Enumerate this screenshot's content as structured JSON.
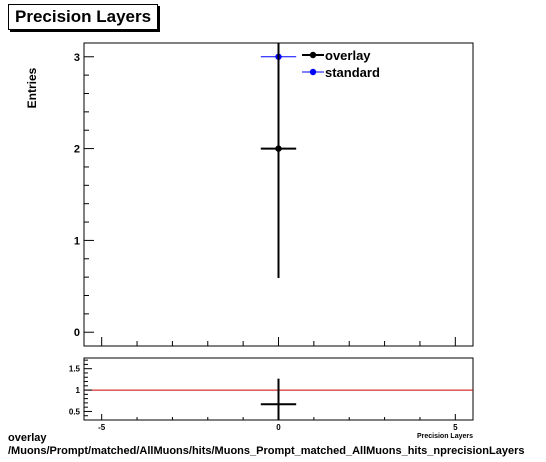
{
  "chart_data": [
    {
      "type": "scatter",
      "title": "Precision Layers",
      "xlabel": "Precision Layers",
      "ylabel": "Entries",
      "xlim": [
        -5.5,
        5.5
      ],
      "ylim": [
        -0.15,
        3.15
      ],
      "yticks": [
        0,
        1,
        2,
        3
      ],
      "grid": false,
      "legend_position": "top-right",
      "series": [
        {
          "name": "overlay",
          "color": "#000000",
          "x": [
            0
          ],
          "y": [
            2
          ],
          "xerr": [
            0.5
          ],
          "yerr": [
            1.41
          ]
        },
        {
          "name": "standard",
          "color": "#0000ff",
          "x": [
            0
          ],
          "y": [
            3
          ],
          "xerr": [
            0.5
          ],
          "yerr": [
            1.73
          ]
        }
      ]
    },
    {
      "type": "scatter",
      "xlim": [
        -5.5,
        5.5
      ],
      "ylim": [
        0.3,
        1.75
      ],
      "xticks": [
        -5,
        0,
        5
      ],
      "yticks": [
        0.5,
        1,
        1.5
      ],
      "reference_line": {
        "y": 1,
        "color": "#cc0000"
      },
      "series": [
        {
          "name": "ratio",
          "color": "#000000",
          "x": [
            0
          ],
          "y": [
            0.667
          ],
          "xerr": [
            0.5
          ],
          "yerr": [
            0.6
          ]
        }
      ]
    }
  ],
  "footer": {
    "line1": "overlay",
    "line2": "/Muons/Prompt/matched/AllMuons/hits/Muons_Prompt_matched_AllMuons_hits_nprecisionLayers"
  }
}
